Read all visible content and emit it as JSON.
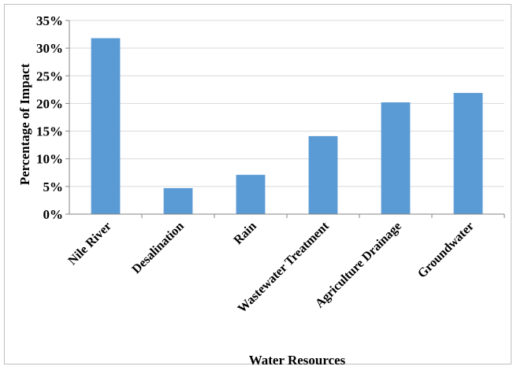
{
  "chart_data": {
    "type": "bar",
    "categories": [
      "Nile River",
      "Desalination",
      "Rain",
      "Wastewater Treatment",
      "Agriculture Drainage",
      "Groundwater"
    ],
    "series": [
      {
        "values": [
          31.8,
          4.7,
          7.1,
          14.1,
          20.2,
          21.9
        ],
        "color": "#5b9bd5"
      }
    ],
    "xlabel": "Water Resources",
    "ylabel": "Percentage of Impact",
    "ylim": [
      0,
      35
    ],
    "yticks": [
      "0%",
      "5%",
      "10%",
      "15%",
      "20%",
      "25%",
      "30%",
      "35%"
    ],
    "grid": true,
    "legend": "none",
    "gridline_color": "#d9d9d9",
    "axis_color": "#868686"
  }
}
